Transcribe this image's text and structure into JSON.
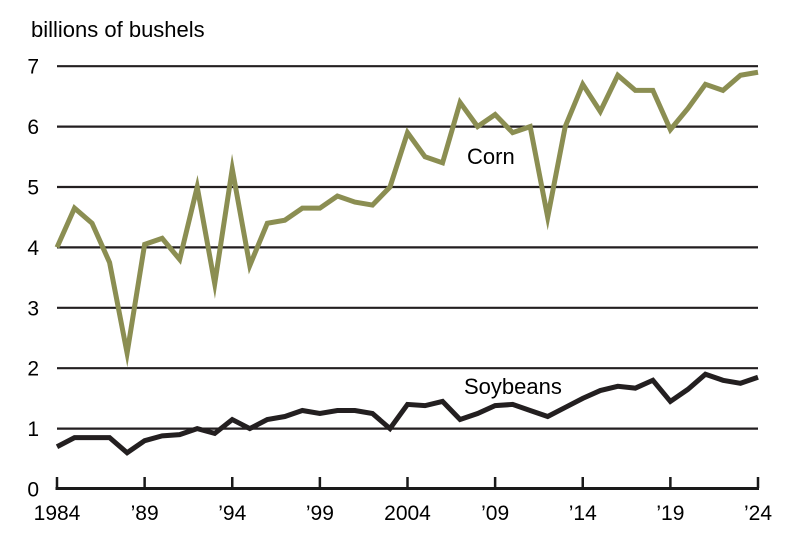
{
  "chart_data": {
    "type": "line",
    "title": "billions of bushels",
    "xlabel": "",
    "ylabel": "billions of bushels",
    "xlim": [
      1984,
      2024
    ],
    "ylim": [
      0,
      7
    ],
    "grid": "horizontal-only",
    "legend": "inline-labels-on-plot",
    "colors": {
      "corn_line": "#8b8e52",
      "soybeans_line": "#231f20",
      "gridline": "#231f20",
      "axis": "#1a1a1a",
      "text": "#000000",
      "background": "#ffffff"
    },
    "y_ticks": [
      0,
      1,
      2,
      3,
      4,
      5,
      6,
      7
    ],
    "x_tick_years": [
      1984,
      1989,
      1994,
      1999,
      2004,
      2009,
      2014,
      2019,
      2024
    ],
    "x_tick_labels": [
      "1984",
      "’89",
      "’94",
      "’99",
      "2004",
      "’09",
      "’14",
      "’19",
      "’24"
    ],
    "years": [
      1984,
      1985,
      1986,
      1987,
      1988,
      1989,
      1990,
      1991,
      1992,
      1993,
      1994,
      1995,
      1996,
      1997,
      1998,
      1999,
      2000,
      2001,
      2002,
      2003,
      2004,
      2005,
      2006,
      2007,
      2008,
      2009,
      2010,
      2011,
      2012,
      2013,
      2014,
      2015,
      2016,
      2017,
      2018,
      2019,
      2020,
      2021,
      2022,
      2023,
      2024
    ],
    "series": [
      {
        "name": "Corn",
        "color": "#8b8e52",
        "values": [
          4.0,
          4.65,
          4.4,
          3.75,
          2.25,
          4.05,
          4.15,
          3.8,
          5.0,
          3.4,
          5.3,
          3.7,
          4.4,
          4.45,
          4.65,
          4.65,
          4.85,
          4.75,
          4.7,
          5.0,
          5.9,
          5.5,
          5.4,
          6.4,
          6.0,
          6.2,
          5.9,
          6.0,
          4.5,
          6.0,
          6.7,
          6.25,
          6.85,
          6.6,
          6.6,
          5.95,
          6.3,
          6.7,
          6.6,
          6.85,
          6.9
        ]
      },
      {
        "name": "Soybeans",
        "color": "#231f20",
        "values": [
          0.7,
          0.85,
          0.85,
          0.85,
          0.6,
          0.8,
          0.88,
          0.9,
          1.0,
          0.92,
          1.15,
          1.0,
          1.15,
          1.2,
          1.3,
          1.25,
          1.3,
          1.3,
          1.25,
          1.0,
          1.4,
          1.38,
          1.45,
          1.15,
          1.25,
          1.38,
          1.4,
          1.3,
          1.2,
          1.35,
          1.5,
          1.63,
          1.7,
          1.67,
          1.8,
          1.45,
          1.65,
          1.9,
          1.8,
          1.75,
          1.85
        ]
      }
    ]
  }
}
